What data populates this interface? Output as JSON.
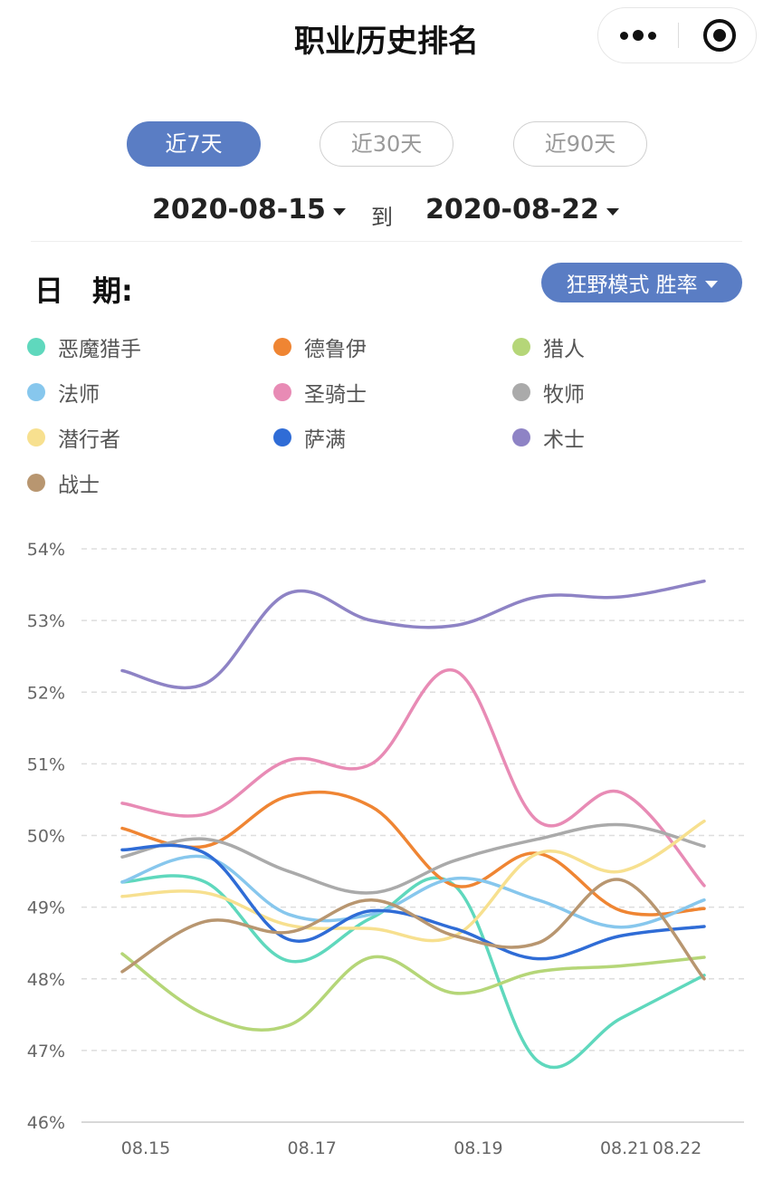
{
  "header": {
    "title": "职业历史排名"
  },
  "range_tabs": [
    {
      "label": "近7天",
      "active": true
    },
    {
      "label": "近30天",
      "active": false
    },
    {
      "label": "近90天",
      "active": false
    }
  ],
  "date_range": {
    "start": "2020-08-15",
    "to_label": "到",
    "end": "2020-08-22"
  },
  "filter": {
    "date_label": "日　期:",
    "mode_label": "狂野模式 胜率"
  },
  "colors": {
    "accent": "#5a7dc4"
  },
  "chart_data": {
    "type": "line",
    "x_labels": [
      "08.15",
      "08.17",
      "08.19",
      "08.21",
      "08.22"
    ],
    "x": [
      "08.15",
      "08.16",
      "08.17",
      "08.18",
      "08.19",
      "08.20",
      "08.21",
      "08.22"
    ],
    "ylim": [
      46,
      54
    ],
    "y_ticks": [
      "46%",
      "47%",
      "48%",
      "49%",
      "50%",
      "51%",
      "52%",
      "53%",
      "54%"
    ],
    "grid": true,
    "legend_position": "top",
    "series": [
      {
        "name": "恶魔猎手",
        "color": "#5fd8bd",
        "values": [
          49.35,
          49.35,
          48.25,
          48.85,
          49.3,
          46.85,
          47.45,
          48.05
        ]
      },
      {
        "name": "德鲁伊",
        "color": "#ef8533",
        "values": [
          50.1,
          49.85,
          50.55,
          50.4,
          49.3,
          49.75,
          48.95,
          48.98
        ]
      },
      {
        "name": "猎人",
        "color": "#b5d678",
        "values": [
          48.35,
          47.5,
          47.35,
          48.3,
          47.8,
          48.1,
          48.18,
          48.3
        ]
      },
      {
        "name": "法师",
        "color": "#87c7ed",
        "values": [
          49.35,
          49.7,
          48.9,
          48.9,
          49.4,
          49.1,
          48.72,
          49.1
        ]
      },
      {
        "name": "圣骑士",
        "color": "#e88bb5",
        "values": [
          50.45,
          50.3,
          51.05,
          51.0,
          52.3,
          50.2,
          50.6,
          49.3
        ]
      },
      {
        "name": "牧师",
        "color": "#aaaaaa",
        "values": [
          49.7,
          49.95,
          49.5,
          49.2,
          49.65,
          49.95,
          50.15,
          49.85
        ]
      },
      {
        "name": "潜行者",
        "color": "#f7e08f",
        "values": [
          49.15,
          49.2,
          48.75,
          48.7,
          48.6,
          49.75,
          49.5,
          50.2
        ]
      },
      {
        "name": "萨满",
        "color": "#2f6cd6",
        "values": [
          49.8,
          49.75,
          48.55,
          48.95,
          48.7,
          48.28,
          48.6,
          48.73
        ]
      },
      {
        "name": "术士",
        "color": "#8e83c5",
        "values": [
          52.3,
          52.12,
          53.38,
          53.0,
          52.93,
          53.33,
          53.33,
          53.55
        ]
      },
      {
        "name": "战士",
        "color": "#b89670",
        "values": [
          48.1,
          48.8,
          48.65,
          49.1,
          48.6,
          48.5,
          49.38,
          48.0
        ]
      }
    ]
  }
}
